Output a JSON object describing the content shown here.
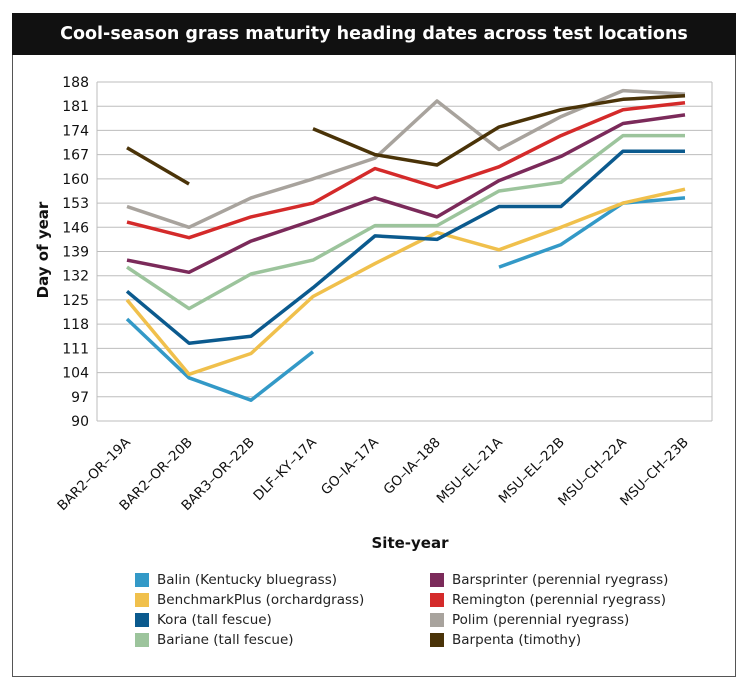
{
  "chart_data": {
    "type": "line",
    "title": "Cool-season grass maturity heading dates across test locations",
    "xlabel": "Site-year",
    "ylabel": "Day of year",
    "ylim": [
      90,
      188
    ],
    "yticks": [
      90,
      97,
      104,
      111,
      118,
      125,
      132,
      139,
      146,
      153,
      160,
      167,
      174,
      181,
      188
    ],
    "grid": true,
    "legend_position": "bottom",
    "categories": [
      "BAR2–OR–19A",
      "BAR2–OR–20B",
      "BAR3–OR–22B",
      "DLF–KY–17A",
      "GO–IA–17A",
      "GO–IA–188",
      "MSU–EL–21A",
      "MSU–EL–22B",
      "MSU–CH–22A",
      "MSU–CH–23B"
    ],
    "series": [
      {
        "name": "Balin (Kentucky bluegrass)",
        "color": "#3399c7",
        "values": [
          119.5,
          102.5,
          96,
          110,
          null,
          null,
          134.5,
          141,
          153,
          154.5
        ]
      },
      {
        "name": "BenchmarkPlus (orchardgrass)",
        "color": "#f0c04c",
        "values": [
          125,
          103.5,
          109.5,
          126,
          135.5,
          144.5,
          139.5,
          146,
          153,
          157
        ]
      },
      {
        "name": "Kora (tall fescue)",
        "color": "#0b5a8e",
        "values": [
          127.5,
          112.5,
          114.5,
          128.5,
          143.5,
          142.5,
          152,
          152,
          168,
          168
        ]
      },
      {
        "name": "Bariane (tall fescue)",
        "color": "#9cc49c",
        "values": [
          134.5,
          122.5,
          132.5,
          136.5,
          146.5,
          146.5,
          156.5,
          159,
          172.5,
          172.5
        ]
      },
      {
        "name": "Barsprinter (perennial ryegrass)",
        "color": "#7b2a5a",
        "values": [
          136.5,
          133,
          142,
          148,
          154.5,
          149,
          159.5,
          166.5,
          176,
          178.5
        ]
      },
      {
        "name": "Remington (perennial ryegrass)",
        "color": "#d42a2a",
        "values": [
          147.5,
          143,
          149,
          153,
          163,
          157.5,
          163.5,
          172.5,
          180,
          182
        ]
      },
      {
        "name": "Polim (perennial ryegrass)",
        "color": "#a8a39d",
        "values": [
          152,
          146,
          154.5,
          160,
          166,
          182.5,
          168.5,
          178,
          185.5,
          184.5
        ]
      },
      {
        "name": "Barpenta (timothy)",
        "color": "#4a3308",
        "values": [
          169,
          158.5,
          null,
          174.5,
          167,
          164,
          175,
          180,
          183,
          184
        ]
      }
    ]
  }
}
